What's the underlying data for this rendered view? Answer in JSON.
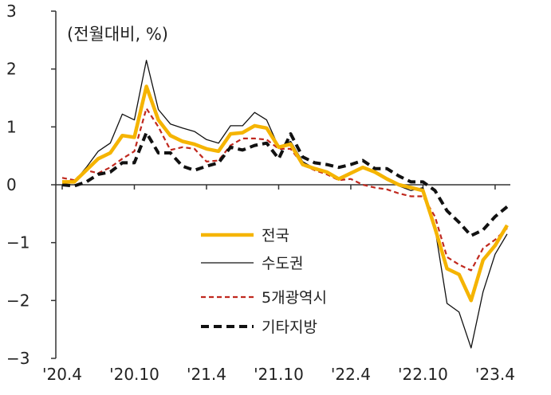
{
  "chart_data": {
    "type": "line",
    "title": "",
    "unit_label": "(전월대비, %)",
    "xlabel": "",
    "ylabel": "",
    "ylim": [
      -3,
      3
    ],
    "yticks": [
      "3",
      "2",
      "1",
      "0",
      "−1",
      "−2",
      "−3"
    ],
    "ytick_values": [
      3,
      2,
      1,
      0,
      -1,
      -2,
      -3
    ],
    "xtick_labels": [
      "'20.4",
      "'20.10",
      "'21.4",
      "'21.10",
      "'22.4",
      "'22.10",
      "'23.4"
    ],
    "xtick_index": [
      0,
      6,
      12,
      18,
      24,
      30,
      36
    ],
    "grid": false,
    "legend_position": "lower-center",
    "series": [
      {
        "name": "전국",
        "color": "#f5b400",
        "style": "solid-thick",
        "values": [
          0.05,
          0.05,
          0.25,
          0.45,
          0.55,
          0.85,
          0.82,
          1.7,
          1.12,
          0.85,
          0.75,
          0.7,
          0.62,
          0.58,
          0.88,
          0.9,
          1.02,
          0.98,
          0.65,
          0.7,
          0.35,
          0.28,
          0.22,
          0.1,
          0.2,
          0.3,
          0.22,
          0.1,
          0.0,
          -0.05,
          -0.1,
          -0.75,
          -1.45,
          -1.55,
          -2.0,
          -1.3,
          -1.05,
          -0.7
        ]
      },
      {
        "name": "수도권",
        "color": "#111111",
        "style": "solid-thin",
        "values": [
          0.05,
          0.05,
          0.3,
          0.58,
          0.72,
          1.22,
          1.12,
          2.15,
          1.3,
          1.05,
          0.98,
          0.92,
          0.78,
          0.72,
          1.02,
          1.02,
          1.25,
          1.12,
          0.65,
          0.75,
          0.4,
          0.28,
          0.22,
          0.12,
          0.22,
          0.28,
          0.22,
          0.08,
          -0.02,
          -0.1,
          -0.05,
          -0.75,
          -2.05,
          -2.2,
          -2.82,
          -1.85,
          -1.2,
          -0.85
        ]
      },
      {
        "name": "5개광역시",
        "color": "#c0281e",
        "style": "dashed",
        "values": [
          0.12,
          0.08,
          0.25,
          0.2,
          0.3,
          0.45,
          0.58,
          1.32,
          1.0,
          0.6,
          0.65,
          0.62,
          0.4,
          0.42,
          0.68,
          0.8,
          0.8,
          0.78,
          0.62,
          0.62,
          0.35,
          0.25,
          0.18,
          0.08,
          0.1,
          0.0,
          -0.05,
          -0.08,
          -0.15,
          -0.2,
          -0.2,
          -0.55,
          -1.25,
          -1.38,
          -1.48,
          -1.1,
          -0.95,
          -0.75
        ]
      },
      {
        "name": "기타지방",
        "color": "#111111",
        "style": "dashed-thick",
        "values": [
          0.0,
          -0.02,
          0.05,
          0.18,
          0.22,
          0.38,
          0.38,
          0.9,
          0.55,
          0.55,
          0.32,
          0.25,
          0.32,
          0.38,
          0.65,
          0.6,
          0.68,
          0.72,
          0.45,
          0.88,
          0.48,
          0.38,
          0.35,
          0.3,
          0.35,
          0.42,
          0.28,
          0.28,
          0.15,
          0.05,
          0.05,
          -0.1,
          -0.45,
          -0.65,
          -0.88,
          -0.78,
          -0.55,
          -0.38
        ]
      }
    ]
  }
}
